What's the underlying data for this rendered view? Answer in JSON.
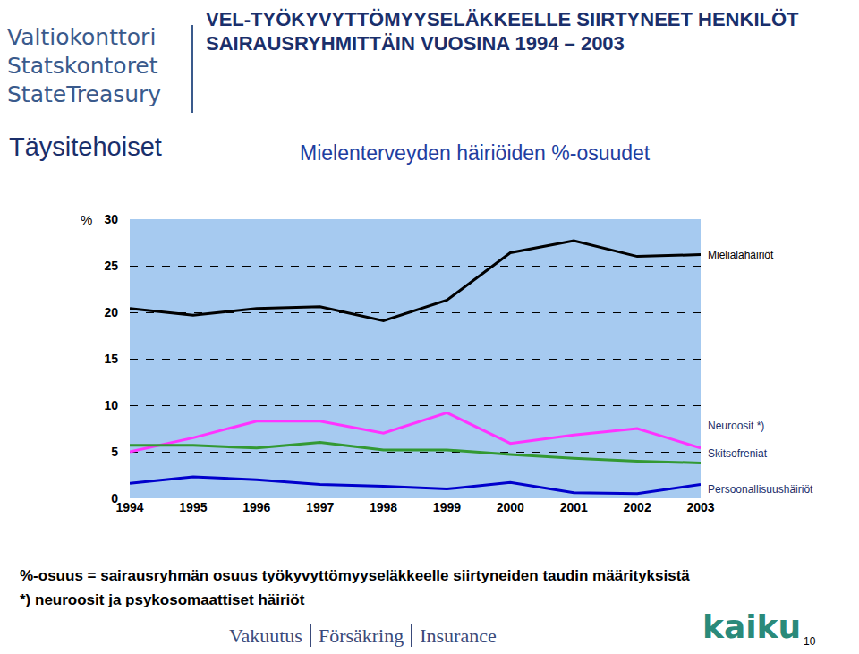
{
  "header": {
    "logo": [
      "Valtiokonttori",
      "Statskontoret",
      "StateTreasury"
    ],
    "title": "VEL-TYÖKYVYTTÖMYYSELÄKKEELLE SIIRTYNEET HENKILÖT SAIRAUSRYHMITTÄIN VUOSINA 1994 – 2003",
    "section": "Täysitehoiset"
  },
  "chart_data": {
    "type": "line",
    "title": "Mielenterveyden häiriöiden %-osuudet",
    "ylabel": "%",
    "x": [
      1994,
      1995,
      1996,
      1997,
      1998,
      1999,
      2000,
      2001,
      2002,
      2003
    ],
    "xlim": [
      1994,
      2003
    ],
    "xticks": [
      1994,
      1995,
      1996,
      1997,
      1998,
      1999,
      2000,
      2001,
      2002,
      2003
    ],
    "ylim": [
      0,
      30
    ],
    "yticks": [
      0,
      5,
      10,
      15,
      20,
      25,
      30
    ],
    "grid": true,
    "series": [
      {
        "name": "Mielialahäiriöt",
        "color": "#000000",
        "values": [
          20.4,
          19.7,
          20.4,
          20.6,
          19.1,
          21.3,
          26.4,
          27.7,
          26.0,
          26.2
        ]
      },
      {
        "name": "Neuroosit *)",
        "color": "#ff33ff",
        "values": [
          5.0,
          6.5,
          8.3,
          8.3,
          7.0,
          9.2,
          5.9,
          6.8,
          7.5,
          5.4
        ]
      },
      {
        "name": "Skitsofreniat",
        "color": "#339933",
        "values": [
          5.7,
          5.7,
          5.4,
          6.0,
          5.2,
          5.2,
          4.7,
          4.3,
          4.0,
          3.8
        ]
      },
      {
        "name": "Persoonallisuushäiriöt",
        "color": "#0000cc",
        "values": [
          1.6,
          2.3,
          2.0,
          1.5,
          1.3,
          1.0,
          1.7,
          0.6,
          0.5,
          1.5
        ]
      }
    ]
  },
  "notes": [
    "%-osuus = sairausryhmän osuus työkyvyttömyyseläkkeelle siirtyneiden taudin määrityksistä",
    "*) neuroosit ja psykosomaattiset häiriöt"
  ],
  "footer": {
    "parts": [
      "Vakuutus",
      "Försäkring",
      "Insurance"
    ],
    "brand": "kaiku",
    "page": "10"
  }
}
